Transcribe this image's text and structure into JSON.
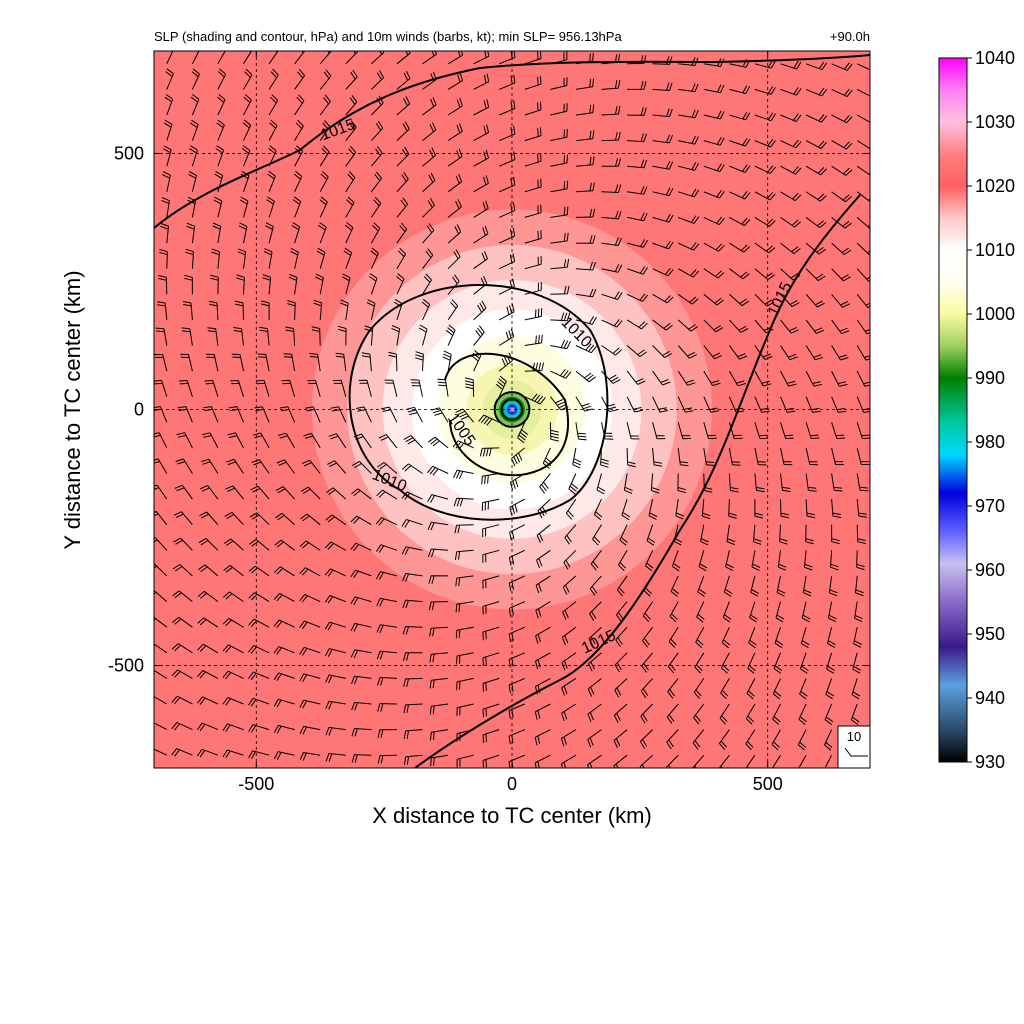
{
  "chart_data": {
    "type": "heatmap",
    "title": "SLP (shading and contour, hPa) and 10m winds (barbs, kt); min SLP= 956.13hPa",
    "forecast_hour": "+90.0h",
    "xlabel": "X distance to TC center (km)",
    "ylabel": "Y distance to TC center (km)",
    "xlim": [
      -700,
      700
    ],
    "ylim": [
      -700,
      700
    ],
    "x_ticks": [
      -500,
      0,
      500
    ],
    "y_ticks": [
      -500,
      0,
      500
    ],
    "x_tick_labels": [
      "-500",
      "0",
      "500"
    ],
    "y_tick_labels": [
      "-500",
      "0",
      "500"
    ],
    "grid": "dashed",
    "min_slp": 956.13,
    "colorbar": {
      "range": [
        930,
        1040
      ],
      "tick_values": [
        930,
        940,
        950,
        960,
        970,
        980,
        990,
        1000,
        1010,
        1020,
        1030,
        1040
      ],
      "tick_labels": [
        "930",
        "940",
        "950",
        "960",
        "970",
        "980",
        "990",
        "1000",
        "1010",
        "1020",
        "1030",
        "1040"
      ],
      "stops": [
        {
          "value": 930,
          "color": "#000000"
        },
        {
          "value": 935,
          "color": "#2a4a6a"
        },
        {
          "value": 942,
          "color": "#5aa0e0"
        },
        {
          "value": 948,
          "color": "#3a1a8a"
        },
        {
          "value": 955,
          "color": "#8a6ac8"
        },
        {
          "value": 961,
          "color": "#c8c0f0"
        },
        {
          "value": 966,
          "color": "#6060ff"
        },
        {
          "value": 972,
          "color": "#0000e0"
        },
        {
          "value": 978,
          "color": "#00d8ff"
        },
        {
          "value": 983,
          "color": "#00c8a0"
        },
        {
          "value": 990,
          "color": "#008000"
        },
        {
          "value": 995,
          "color": "#a0d060"
        },
        {
          "value": 1000,
          "color": "#fafaa0"
        },
        {
          "value": 1005,
          "color": "#fffff0"
        },
        {
          "value": 1010,
          "color": "#ffffff"
        },
        {
          "value": 1015,
          "color": "#ffc8c8"
        },
        {
          "value": 1020,
          "color": "#ff6060"
        },
        {
          "value": 1025,
          "color": "#ff8080"
        },
        {
          "value": 1030,
          "color": "#ffc0e0"
        },
        {
          "value": 1035,
          "color": "#ff80f0"
        },
        {
          "value": 1040,
          "color": "#ff00ff"
        }
      ]
    },
    "contour_labels": [
      {
        "text": "1015",
        "x": -340,
        "y": 545,
        "angle": -20
      },
      {
        "text": "1010",
        "x": 125,
        "y": 150,
        "angle": 45
      },
      {
        "text": "1005",
        "x": -100,
        "y": -40,
        "angle": 55
      },
      {
        "text": "1010",
        "x": -240,
        "y": -140,
        "angle": 22
      },
      {
        "text": "1015",
        "x": 525,
        "y": 215,
        "angle": -65
      },
      {
        "text": "1015",
        "x": 170,
        "y": -455,
        "angle": -25
      }
    ],
    "wind_barb_reference": "10"
  }
}
